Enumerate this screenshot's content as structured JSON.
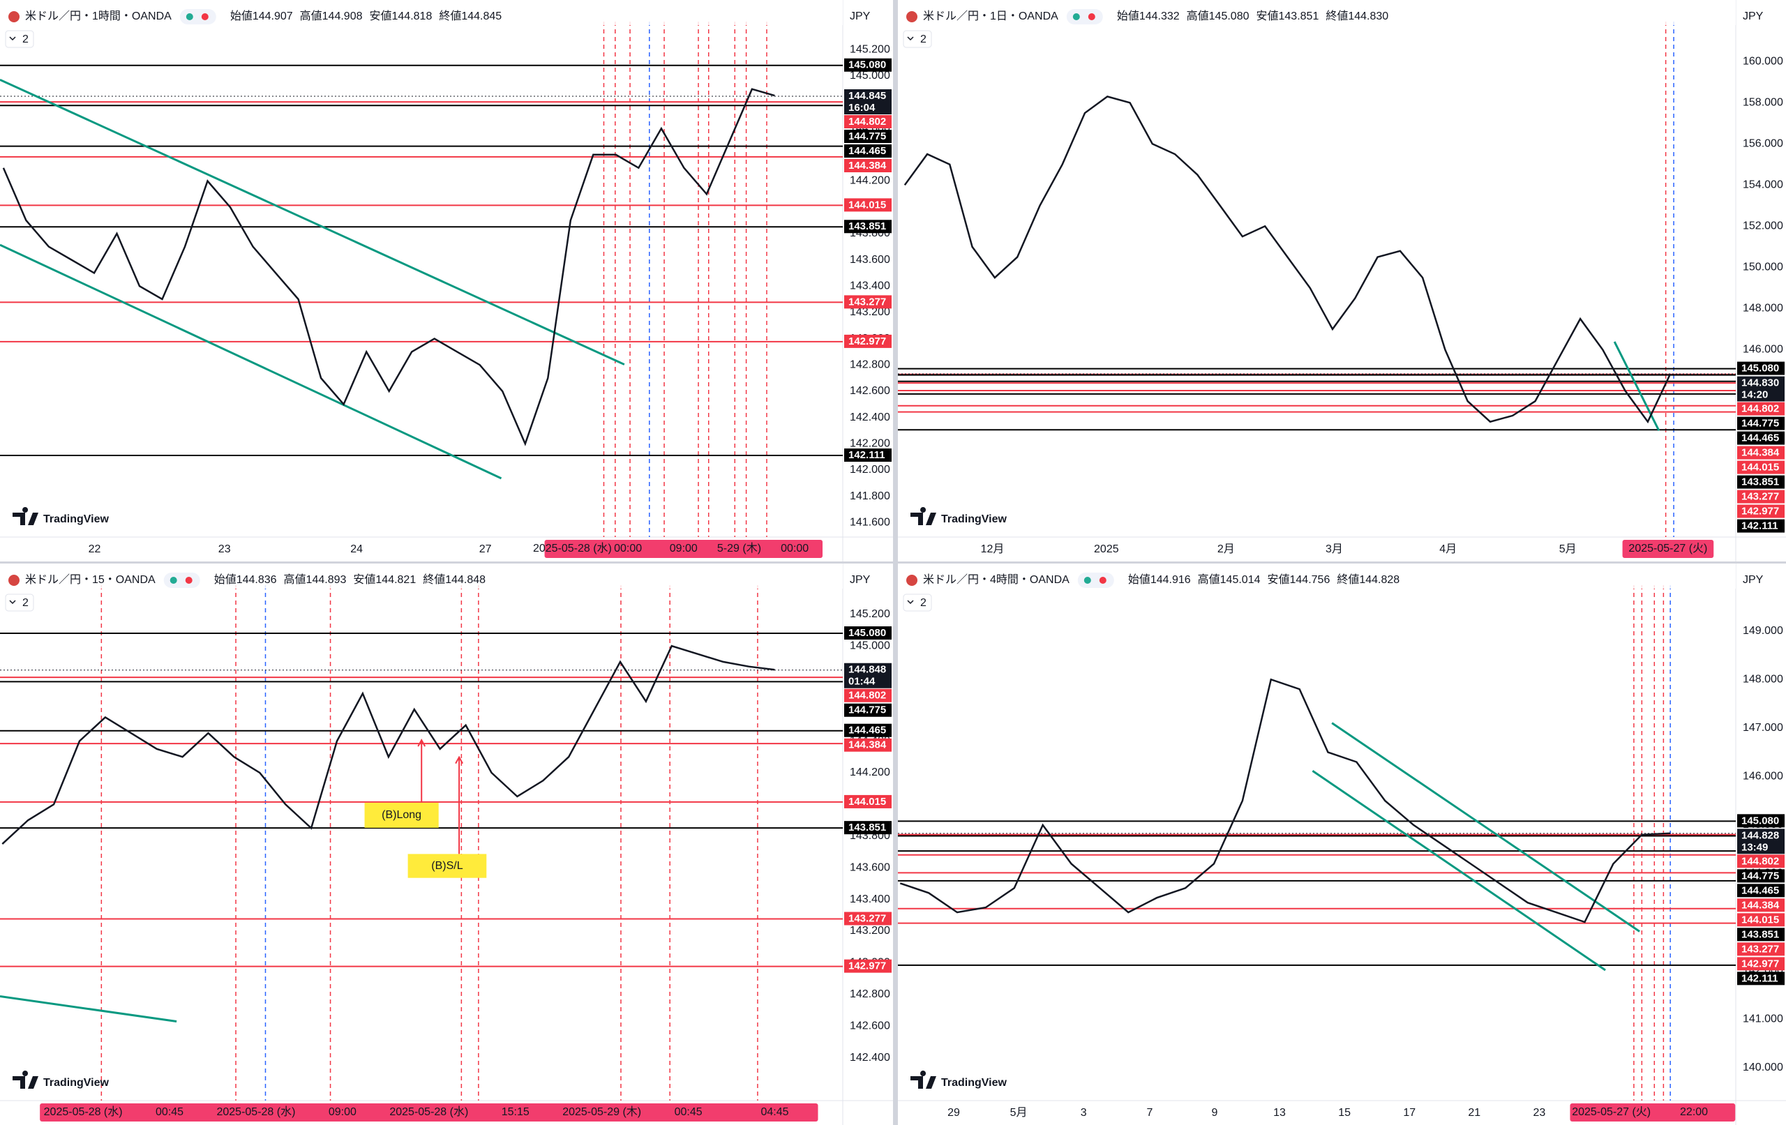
{
  "levels": [
    {
      "value": 145.08,
      "label": "145.080",
      "color": "#000000"
    },
    {
      "value": 144.802,
      "label": "144.802",
      "color": "#f23645"
    },
    {
      "value": 144.775,
      "label": "144.775",
      "color": "#000000"
    },
    {
      "value": 144.465,
      "label": "144.465",
      "color": "#000000"
    },
    {
      "value": 144.384,
      "label": "144.384",
      "color": "#f23645"
    },
    {
      "value": 144.015,
      "label": "144.015",
      "color": "#f23645"
    },
    {
      "value": 143.851,
      "label": "143.851",
      "color": "#000000"
    },
    {
      "value": 143.277,
      "label": "143.277",
      "color": "#f23645"
    },
    {
      "value": 142.977,
      "label": "142.977",
      "color": "#f23645"
    },
    {
      "value": 142.111,
      "label": "142.111",
      "color": "#000000"
    }
  ],
  "panels": [
    {
      "title": "米ドル／円・1時間・OANDA",
      "ohlc": [
        "始値144.907",
        "高値144.908",
        "安値144.818",
        "終値144.845"
      ],
      "currency": "JPY",
      "indicator_count": "2",
      "price": {
        "value": 144.845,
        "label": "144.845",
        "countdown": "16:04"
      },
      "ylim": [
        141.49,
        145.36
      ],
      "yticks": [
        {
          "value": 141.6,
          "label": "141.600"
        },
        {
          "value": 141.8,
          "label": "141.800"
        },
        {
          "value": 142.0,
          "label": "142.000"
        },
        {
          "value": 142.2,
          "label": "142.200"
        },
        {
          "value": 142.4,
          "label": "142.400"
        },
        {
          "value": 142.6,
          "label": "142.600"
        },
        {
          "value": 142.8,
          "label": "142.800"
        },
        {
          "value": 143.0,
          "label": "143.000"
        },
        {
          "value": 143.2,
          "label": "143.200"
        },
        {
          "value": 143.4,
          "label": "143.400"
        },
        {
          "value": 143.6,
          "label": "143.600"
        },
        {
          "value": 143.8,
          "label": "143.800"
        },
        {
          "value": 144.0,
          "label": "144.000"
        },
        {
          "value": 144.2,
          "label": "144.200"
        },
        {
          "value": 144.4,
          "label": "144.400"
        },
        {
          "value": 144.6,
          "label": "144.600"
        },
        {
          "value": 144.8,
          "label": "144.800"
        },
        {
          "value": 145.0,
          "label": "145.000"
        },
        {
          "value": 145.2,
          "label": "145.200"
        }
      ],
      "closes": [
        144.3,
        143.9,
        143.7,
        143.6,
        143.5,
        143.8,
        143.4,
        143.3,
        143.7,
        144.2,
        144.0,
        143.7,
        143.5,
        143.3,
        142.7,
        142.5,
        142.9,
        142.6,
        142.9,
        143.0,
        142.9,
        142.8,
        142.6,
        142.2,
        142.7,
        143.9,
        144.4,
        144.4,
        144.3,
        144.6,
        144.3,
        144.1,
        144.5,
        144.9,
        144.85
      ],
      "x_labels": [
        "22",
        "23",
        "24",
        "27"
      ],
      "date_pills": [
        "2025-05-28 (水)",
        "00:00",
        "09:00",
        "5-29 (木)",
        "00:00"
      ],
      "logo": "TradingView"
    },
    {
      "title": "米ドル／円・1日・OANDA",
      "ohlc": [
        "始値144.332",
        "高値145.080",
        "安値143.851",
        "終値144.830"
      ],
      "currency": "JPY",
      "indicator_count": "2",
      "price": {
        "value": 144.83,
        "label": "144.830",
        "countdown": "14:20"
      },
      "ylim": [
        136.9,
        161.6
      ],
      "yticks": [
        {
          "value": 146,
          "label": "146.000"
        },
        {
          "value": 148,
          "label": "148.000"
        },
        {
          "value": 150,
          "label": "150.000"
        },
        {
          "value": 152,
          "label": "152.000"
        },
        {
          "value": 154,
          "label": "154.000"
        },
        {
          "value": 156,
          "label": "156.000"
        },
        {
          "value": 158,
          "label": "158.000"
        },
        {
          "value": 160,
          "label": "160.000"
        }
      ],
      "closes": [
        154.0,
        155.5,
        155.0,
        151.0,
        149.5,
        150.5,
        153.0,
        155.0,
        157.5,
        158.3,
        158.0,
        156.0,
        155.5,
        154.5,
        153.0,
        151.5,
        152.0,
        150.5,
        149.0,
        147.0,
        148.5,
        150.5,
        150.8,
        149.5,
        146.0,
        143.5,
        142.5,
        142.8,
        143.5,
        145.5,
        147.5,
        146.0,
        144.0,
        142.5,
        144.83
      ],
      "x_labels": [
        "12月",
        "2025",
        "2月",
        "3月",
        "4月",
        "5月"
      ],
      "date_pills": [
        "2025-05-27 (火)"
      ],
      "logo": "TradingView"
    },
    {
      "title": "米ドル／円・15・OANDA",
      "ohlc": [
        "始値144.836",
        "高値144.893",
        "安値144.821",
        "終値144.848"
      ],
      "currency": "JPY",
      "indicator_count": "2",
      "price": {
        "value": 144.848,
        "label": "144.848",
        "countdown": "01:44"
      },
      "ylim": [
        142.13,
        145.34
      ],
      "yticks": [
        {
          "value": 142.4,
          "label": "142.400"
        },
        {
          "value": 142.6,
          "label": "142.600"
        },
        {
          "value": 142.8,
          "label": "142.800"
        },
        {
          "value": 143.0,
          "label": "143.000"
        },
        {
          "value": 143.2,
          "label": "143.200"
        },
        {
          "value": 143.4,
          "label": "143.400"
        },
        {
          "value": 143.6,
          "label": "143.600"
        },
        {
          "value": 143.8,
          "label": "143.800"
        },
        {
          "value": 144.0,
          "label": "144.000"
        },
        {
          "value": 144.2,
          "label": "144.200"
        },
        {
          "value": 144.4,
          "label": "144.400"
        },
        {
          "value": 144.6,
          "label": "144.600"
        },
        {
          "value": 144.8,
          "label": "144.800"
        },
        {
          "value": 145.0,
          "label": "145.000"
        },
        {
          "value": 145.2,
          "label": "145.200"
        }
      ],
      "closes": [
        143.75,
        143.9,
        144.0,
        144.4,
        144.55,
        144.45,
        144.35,
        144.3,
        144.45,
        144.3,
        144.2,
        144.0,
        143.85,
        144.4,
        144.7,
        144.3,
        144.6,
        144.35,
        144.5,
        144.2,
        144.05,
        144.15,
        144.3,
        144.6,
        144.9,
        144.65,
        145.0,
        144.95,
        144.9,
        144.87,
        144.85
      ],
      "x_labels": [],
      "date_pills": [
        "2025-05-28 (水)",
        "00:45",
        "2025-05-28 (水)",
        "09:00",
        "2025-05-28 (水)",
        "15:15",
        "2025-05-29 (木)",
        "00:45",
        "04:45"
      ],
      "logo": "TradingView",
      "annotations": [
        "(B)Long",
        "(B)S/L"
      ]
    },
    {
      "title": "米ドル／円・4時間・OANDA",
      "ohlc": [
        "始値144.916",
        "高値145.014",
        "安値144.756",
        "終値144.828"
      ],
      "currency": "JPY",
      "indicator_count": "2",
      "price": {
        "value": 144.828,
        "label": "144.828",
        "countdown": "13:49"
      },
      "ylim": [
        139.32,
        149.8
      ],
      "yticks": [
        {
          "value": 140,
          "label": "140.000"
        },
        {
          "value": 141,
          "label": "141.000"
        },
        {
          "value": 142,
          "label": "142.000"
        },
        {
          "value": 143,
          "label": "143.000"
        },
        {
          "value": 144,
          "label": "144.000"
        },
        {
          "value": 145,
          "label": "145.000"
        },
        {
          "value": 146,
          "label": "146.000"
        },
        {
          "value": 147,
          "label": "147.000"
        },
        {
          "value": 148,
          "label": "148.000"
        },
        {
          "value": 149,
          "label": "149.000"
        }
      ],
      "closes": [
        143.8,
        143.6,
        143.2,
        143.3,
        143.7,
        145.0,
        144.2,
        143.7,
        143.2,
        143.5,
        143.7,
        144.2,
        145.5,
        148.0,
        147.8,
        146.5,
        146.3,
        145.5,
        145.0,
        144.6,
        144.2,
        143.8,
        143.4,
        143.2,
        143.0,
        144.2,
        144.8,
        144.83
      ],
      "x_labels": [
        "29",
        "5月",
        "3",
        "7",
        "9",
        "13",
        "15",
        "17",
        "21",
        "23"
      ],
      "date_pills": [
        "2025-05-27 (火)",
        "22:00"
      ],
      "logo": "TradingView"
    }
  ]
}
